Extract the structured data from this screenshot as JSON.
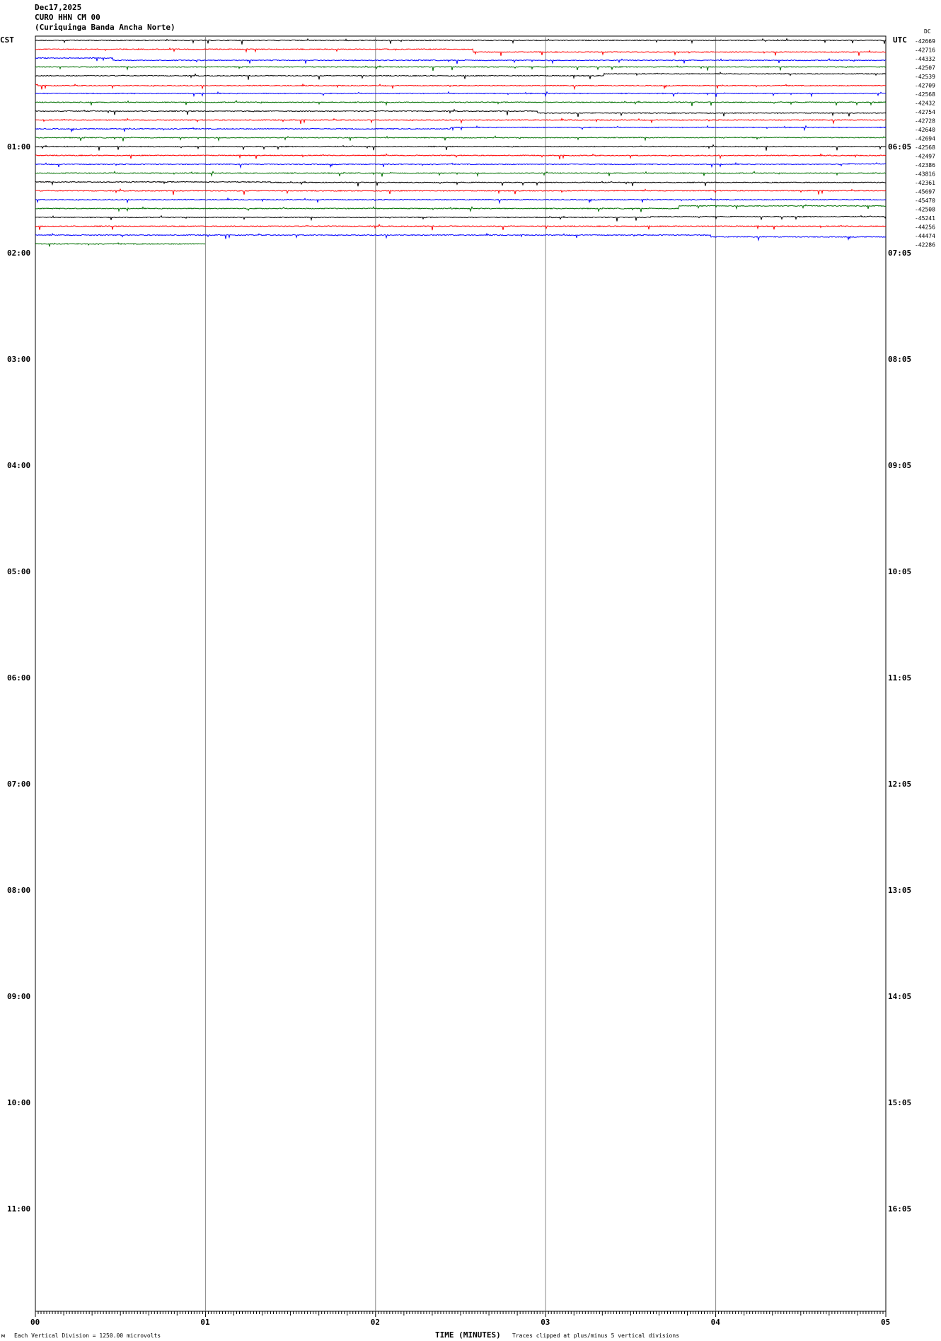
{
  "header": {
    "date": "Dec17,2025",
    "station": "CURO HHN CM 00",
    "station_name": "(Curiquinga Banda Ancha Norte)",
    "left_tz": "CST",
    "right_tz": "UTC",
    "dc_label": "DC"
  },
  "footer": {
    "scale_note": "Each Vertical Division = 1250.00 microvolts",
    "xlabel": "TIME (MINUTES)",
    "clip_note": "Traces clipped at plus/minus 5 vertical divisions",
    "corner_mark": "м"
  },
  "chart_data": {
    "type": "line",
    "title": "",
    "xlabel": "TIME (MINUTES)",
    "xlim": [
      0,
      5
    ],
    "x_ticks": [
      "00",
      "01",
      "02",
      "03",
      "04",
      "05"
    ],
    "grid": true,
    "trace_colors": [
      "#000000",
      "#ff0000",
      "#0000ff",
      "#007000"
    ],
    "left_hour_labels": [
      "01:00",
      "02:00",
      "03:00",
      "04:00",
      "05:00",
      "06:00",
      "07:00",
      "08:00",
      "09:00",
      "10:00",
      "11:00"
    ],
    "right_hour_labels": [
      "06:05",
      "07:05",
      "08:05",
      "09:05",
      "10:05",
      "11:05",
      "12:05",
      "13:05",
      "14:05",
      "15:05",
      "16:05"
    ],
    "traces_per_hour": 12,
    "last_trace_end_minute": 1.0,
    "trace_dc_offsets": [
      "-42669",
      "-42716",
      "-44332",
      "-42507",
      "-42539",
      "-42709",
      "-42568",
      "-42432",
      "-42754",
      "-42728",
      "-42640",
      "-42694",
      "-42568",
      "-42497",
      "-42386",
      "-43816",
      "-42361",
      "-45697",
      "-45470",
      "-42508",
      "-45241",
      "-44256",
      "-44474",
      "-42286"
    ]
  }
}
